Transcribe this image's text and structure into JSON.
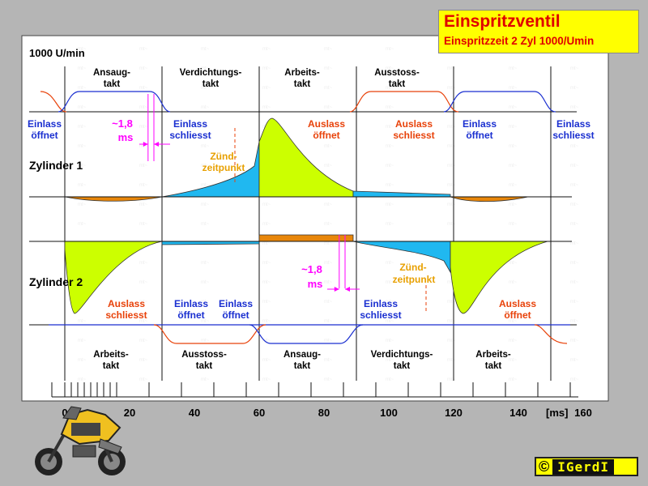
{
  "title": {
    "main": "Einspritzventil",
    "sub": "Einspritzzeit 2 Zyl 1000/Umin"
  },
  "speed_label": "1000 U/min",
  "top_strokes": [
    {
      "l1": "Ansaug-",
      "l2": "takt"
    },
    {
      "l1": "Verdichtungs-",
      "l2": "takt"
    },
    {
      "l1": "Arbeits-",
      "l2": "takt"
    },
    {
      "l1": "Ausstoss-",
      "l2": "takt"
    }
  ],
  "bottom_strokes": [
    {
      "l1": "Arbeits-",
      "l2": "takt"
    },
    {
      "l1": "Ausstoss-",
      "l2": "takt"
    },
    {
      "l1": "Ansaug-",
      "l2": "takt"
    },
    {
      "l1": "Verdichtungs-",
      "l2": "takt"
    },
    {
      "l1": "Arbeits-",
      "l2": "takt"
    }
  ],
  "cyl1": {
    "label": "Zylinder 1",
    "events": [
      {
        "l1": "Einlass",
        "l2": "öffnet",
        "color": "#1a2fd0"
      },
      {
        "l1": "Einlass",
        "l2": "schliesst",
        "color": "#1a2fd0"
      },
      {
        "l1": "Auslass",
        "l2": "öffnet",
        "color": "#e8420a"
      },
      {
        "l1": "Auslass",
        "l2": "schliesst",
        "color": "#e8420a"
      },
      {
        "l1": "Einlass",
        "l2": "öffnet",
        "color": "#1a2fd0"
      },
      {
        "l1": "Einlass",
        "l2": "schliesst",
        "color": "#1a2fd0"
      }
    ],
    "injection": {
      "l1": "~1,8",
      "l2": "ms"
    },
    "ignition": {
      "l1": "Zünd-",
      "l2": "zeitpunkt"
    }
  },
  "cyl2": {
    "label": "Zylinder 2",
    "events": [
      {
        "l1": "Auslass",
        "l2": "schliesst",
        "color": "#e8420a"
      },
      {
        "l1": "Einlass",
        "l2": "öffnet",
        "color": "#1a2fd0"
      },
      {
        "l1": "Einlass",
        "l2": "öffnet",
        "color": "#1a2fd0"
      },
      {
        "l1": "Einlass",
        "l2": "schliesst",
        "color": "#1a2fd0"
      },
      {
        "l1": "Auslass",
        "l2": "öffnet",
        "color": "#e8420a"
      }
    ],
    "injection": {
      "l1": "~1,8",
      "l2": "ms"
    },
    "ignition": {
      "l1": "Zünd-",
      "l2": "zeitpunkt"
    }
  },
  "time_axis": {
    "tick_labels": [
      "0",
      "20",
      "40",
      "60",
      "80",
      "100",
      "120",
      "140",
      "160"
    ],
    "unit": "[ms]",
    "stroke_duration_ms": 30,
    "injection_ms": 1.8
  },
  "colors": {
    "inlet": "#1a2fd0",
    "exhaust": "#e8420a",
    "compression": "#20b8f0",
    "combustion": "#ccff00",
    "vacuum": "#e8860a",
    "injection": "#ff00ff",
    "ignition": "#e8a000",
    "title_bg": "#ffff00",
    "title_text": "#e00000"
  },
  "copyright": {
    "symbol": "©",
    "name": "IGerdI"
  }
}
